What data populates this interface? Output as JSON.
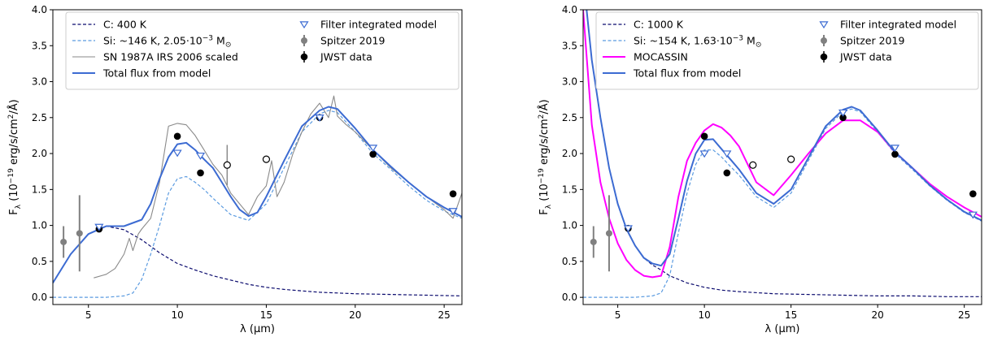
{
  "colors": {
    "carbon": "#0b0b6e",
    "silicate": "#5b9be0",
    "total": "#3c6bd2",
    "sn1987a": "#8a8a8a",
    "mocassin": "#ff00ff",
    "spitzer": "#808080",
    "jwst": "#000000",
    "filter_marker": "#3c6bd2"
  },
  "chart_data": [
    {
      "type": "line",
      "xlabel": "λ (μm)",
      "ylabel": "F_λ (10^−19 erg/s/cm²/Å)",
      "xlim": [
        3.0,
        26.0
      ],
      "ylim": [
        -0.1,
        4.0
      ],
      "xticks": [
        5,
        10,
        15,
        20,
        25
      ],
      "yticks": [
        0.0,
        0.5,
        1.0,
        1.5,
        2.0,
        2.5,
        3.0,
        3.5,
        4.0
      ],
      "legend_left": [
        {
          "key": "carbon",
          "label": "C: 400 K"
        },
        {
          "key": "silicate",
          "label_pre": "Si: ~146 K, 2.05·10",
          "label_exp": "−3",
          "label_post": " M",
          "label_sub": "⊙"
        },
        {
          "key": "sn1987a",
          "label": "SN 1987A IRS 2006 scaled"
        },
        {
          "key": "total",
          "label": "Total flux from model"
        }
      ],
      "legend_right": [
        {
          "key": "filter",
          "label": "Filter integrated model"
        },
        {
          "key": "spitzer",
          "label": "Spitzer 2019"
        },
        {
          "key": "jwst",
          "label": "JWST data"
        }
      ],
      "series": [
        {
          "name": "C: 400 K",
          "key": "carbon",
          "style": "dashed",
          "x": [
            3.0,
            4.0,
            5.0,
            6.0,
            7.0,
            8.0,
            9.0,
            10.0,
            11.0,
            12.0,
            13.0,
            14.0,
            15.0,
            16.0,
            17.0,
            18.0,
            20.0,
            22.0,
            24.0,
            26.0
          ],
          "y": [
            0.2,
            0.6,
            0.88,
            0.99,
            0.94,
            0.8,
            0.62,
            0.47,
            0.38,
            0.3,
            0.24,
            0.18,
            0.14,
            0.11,
            0.09,
            0.07,
            0.05,
            0.04,
            0.03,
            0.02
          ]
        },
        {
          "name": "Si: ~146 K",
          "key": "silicate",
          "style": "dashed",
          "x": [
            3.0,
            6.0,
            7.0,
            7.5,
            8.0,
            8.5,
            9.0,
            9.5,
            10.0,
            10.5,
            11.0,
            11.5,
            12.0,
            13.0,
            14.0,
            15.0,
            16.0,
            17.0,
            18.0,
            18.5,
            19.0,
            20.0,
            21.0,
            22.0,
            23.0,
            24.0,
            25.0,
            26.0
          ],
          "y": [
            0.0,
            0.0,
            0.02,
            0.06,
            0.25,
            0.6,
            1.0,
            1.45,
            1.65,
            1.68,
            1.6,
            1.5,
            1.38,
            1.15,
            1.07,
            1.3,
            1.8,
            2.3,
            2.55,
            2.6,
            2.57,
            2.3,
            2.0,
            1.78,
            1.55,
            1.35,
            1.2,
            1.1
          ]
        },
        {
          "name": "SN 1987A IRS 2006 scaled",
          "key": "sn1987a",
          "style": "solid",
          "x": [
            5.3,
            6.0,
            6.5,
            7.0,
            7.3,
            7.5,
            7.8,
            8.0,
            8.5,
            9.0,
            9.5,
            10.0,
            10.5,
            11.0,
            11.5,
            12.0,
            12.5,
            13.0,
            13.5,
            14.0,
            14.5,
            15.0,
            15.3,
            15.6,
            16.0,
            16.5,
            17.0,
            17.5,
            18.0,
            18.5,
            18.8,
            19.0,
            19.5,
            20.0,
            21.0,
            22.0,
            23.0,
            24.0,
            25.0,
            25.5,
            26.0
          ],
          "y": [
            0.27,
            0.32,
            0.4,
            0.6,
            0.82,
            0.65,
            0.88,
            0.95,
            1.1,
            1.6,
            2.38,
            2.42,
            2.4,
            2.25,
            2.05,
            1.85,
            1.7,
            1.45,
            1.3,
            1.15,
            1.4,
            1.55,
            1.9,
            1.4,
            1.6,
            2.0,
            2.3,
            2.55,
            2.7,
            2.5,
            2.8,
            2.52,
            2.4,
            2.3,
            2.05,
            1.8,
            1.6,
            1.4,
            1.22,
            1.1,
            1.45
          ]
        },
        {
          "name": "Total flux from model",
          "key": "total",
          "style": "solid",
          "x": [
            3.0,
            4.0,
            5.0,
            6.0,
            7.0,
            8.0,
            8.5,
            9.0,
            9.5,
            10.0,
            10.5,
            11.0,
            11.5,
            12.0,
            12.5,
            13.0,
            13.5,
            14.0,
            14.5,
            15.0,
            16.0,
            17.0,
            18.0,
            18.5,
            19.0,
            20.0,
            21.0,
            22.0,
            23.0,
            24.0,
            25.0,
            26.0
          ],
          "y": [
            0.2,
            0.6,
            0.88,
            0.99,
            0.99,
            1.08,
            1.3,
            1.65,
            1.95,
            2.13,
            2.15,
            2.05,
            1.92,
            1.8,
            1.6,
            1.4,
            1.22,
            1.13,
            1.18,
            1.4,
            1.9,
            2.38,
            2.6,
            2.65,
            2.62,
            2.35,
            2.05,
            1.82,
            1.6,
            1.4,
            1.25,
            1.12
          ]
        }
      ],
      "filter_model": {
        "x": [
          5.6,
          10.0,
          11.3,
          18.0,
          21.0,
          25.5
        ],
        "y": [
          0.98,
          2.01,
          1.97,
          2.5,
          2.08,
          1.2
        ]
      },
      "spitzer": {
        "x": [
          3.6,
          4.5
        ],
        "y": [
          0.77,
          0.89
        ],
        "err": [
          0.22,
          0.53
        ]
      },
      "jwst": {
        "x": [
          5.6,
          10.0,
          11.3,
          18.0,
          21.0,
          25.5
        ],
        "y": [
          0.95,
          2.24,
          1.73,
          2.5,
          1.99,
          1.44
        ]
      },
      "jwst_open": {
        "x": [
          12.8,
          15.0
        ],
        "y": [
          1.84,
          1.92
        ],
        "err": [
          0.28,
          0.0
        ]
      }
    },
    {
      "type": "line",
      "xlabel": "λ (μm)",
      "ylabel": "F_λ (10^−19 erg/s/cm²/Å)",
      "xlim": [
        3.0,
        26.0
      ],
      "ylim": [
        -0.1,
        4.0
      ],
      "xticks": [
        5,
        10,
        15,
        20,
        25
      ],
      "yticks": [
        0.0,
        0.5,
        1.0,
        1.5,
        2.0,
        2.5,
        3.0,
        3.5,
        4.0
      ],
      "legend_left": [
        {
          "key": "carbon",
          "label": "C: 1000 K"
        },
        {
          "key": "silicate",
          "label_pre": "Si: ~154 K, 1.63·10",
          "label_exp": "−3",
          "label_post": " M",
          "label_sub": "⊙"
        },
        {
          "key": "mocassin",
          "label": "MOCASSIN"
        },
        {
          "key": "total",
          "label": "Total flux from model"
        }
      ],
      "legend_right": [
        {
          "key": "filter",
          "label": "Filter integrated model"
        },
        {
          "key": "spitzer",
          "label": "Spitzer 2019"
        },
        {
          "key": "jwst",
          "label": "JWST data"
        }
      ],
      "series": [
        {
          "name": "C: 1000 K",
          "key": "carbon",
          "style": "dashed",
          "x": [
            3.2,
            3.5,
            4.0,
            4.5,
            5.0,
            5.5,
            6.0,
            6.5,
            7.0,
            7.5,
            8.0,
            9.0,
            10.0,
            11.0,
            12.0,
            14.0,
            16.0,
            18.0,
            20.0,
            22.0,
            24.0,
            26.0
          ],
          "y": [
            4.0,
            3.3,
            2.5,
            1.8,
            1.3,
            0.95,
            0.72,
            0.55,
            0.45,
            0.38,
            0.3,
            0.2,
            0.14,
            0.1,
            0.08,
            0.05,
            0.04,
            0.03,
            0.02,
            0.02,
            0.01,
            0.01
          ]
        },
        {
          "name": "Si: ~154 K",
          "key": "silicate",
          "style": "dashed",
          "x": [
            3.0,
            6.0,
            7.0,
            7.5,
            8.0,
            8.5,
            9.0,
            9.5,
            10.0,
            10.5,
            11.0,
            11.5,
            12.0,
            13.0,
            14.0,
            15.0,
            16.0,
            17.0,
            18.0,
            18.5,
            19.0,
            20.0,
            21.0,
            22.0,
            23.0,
            24.0,
            25.0,
            26.0
          ],
          "y": [
            0.0,
            0.0,
            0.02,
            0.06,
            0.3,
            0.9,
            1.45,
            1.85,
            2.05,
            2.05,
            1.95,
            1.82,
            1.7,
            1.4,
            1.25,
            1.45,
            1.9,
            2.35,
            2.58,
            2.62,
            2.58,
            2.3,
            2.0,
            1.78,
            1.55,
            1.35,
            1.18,
            1.06
          ]
        },
        {
          "name": "MOCASSIN",
          "key": "mocassin",
          "style": "solid",
          "x": [
            3.0,
            3.5,
            4.0,
            4.5,
            5.0,
            5.5,
            6.0,
            6.5,
            7.0,
            7.5,
            8.0,
            8.5,
            9.0,
            9.5,
            10.0,
            10.5,
            11.0,
            11.5,
            12.0,
            12.5,
            13.0,
            14.0,
            15.0,
            16.0,
            17.0,
            18.0,
            19.0,
            20.0,
            21.0,
            22.0,
            23.0,
            24.0,
            25.0,
            26.0
          ],
          "y": [
            4.0,
            2.4,
            1.6,
            1.1,
            0.75,
            0.52,
            0.38,
            0.3,
            0.28,
            0.3,
            0.7,
            1.4,
            1.9,
            2.15,
            2.32,
            2.41,
            2.36,
            2.25,
            2.1,
            1.85,
            1.6,
            1.42,
            1.7,
            2.0,
            2.28,
            2.46,
            2.46,
            2.3,
            2.02,
            1.8,
            1.58,
            1.4,
            1.25,
            1.12
          ]
        },
        {
          "name": "Total flux from model",
          "key": "total",
          "style": "solid",
          "x": [
            3.2,
            3.5,
            4.0,
            4.5,
            5.0,
            5.5,
            6.0,
            6.5,
            7.0,
            7.5,
            8.0,
            8.5,
            9.0,
            9.5,
            10.0,
            10.5,
            11.0,
            11.5,
            12.0,
            13.0,
            14.0,
            15.0,
            16.0,
            17.0,
            18.0,
            18.5,
            19.0,
            20.0,
            21.0,
            22.0,
            23.0,
            24.0,
            25.0,
            26.0
          ],
          "y": [
            4.0,
            3.3,
            2.5,
            1.8,
            1.3,
            0.95,
            0.72,
            0.55,
            0.47,
            0.44,
            0.6,
            1.1,
            1.62,
            2.0,
            2.19,
            2.2,
            2.06,
            1.92,
            1.78,
            1.45,
            1.3,
            1.5,
            1.94,
            2.38,
            2.61,
            2.65,
            2.6,
            2.32,
            2.02,
            1.8,
            1.56,
            1.36,
            1.19,
            1.07
          ]
        }
      ],
      "filter_model": {
        "x": [
          5.6,
          10.0,
          11.3,
          18.0,
          21.0,
          25.5
        ],
        "y": [
          0.96,
          2.0,
          2.0,
          2.57,
          2.08,
          1.15
        ]
      },
      "spitzer": {
        "x": [
          3.6,
          4.5
        ],
        "y": [
          0.77,
          0.89
        ],
        "err": [
          0.22,
          0.53
        ]
      },
      "jwst": {
        "x": [
          5.6,
          10.0,
          11.3,
          18.0,
          21.0,
          25.5
        ],
        "y": [
          0.96,
          2.24,
          1.73,
          2.5,
          1.99,
          1.44
        ]
      },
      "jwst_open": {
        "x": [
          12.8,
          15.0
        ],
        "y": [
          1.84,
          1.92
        ],
        "err": [
          0.0,
          0.0
        ]
      }
    }
  ]
}
